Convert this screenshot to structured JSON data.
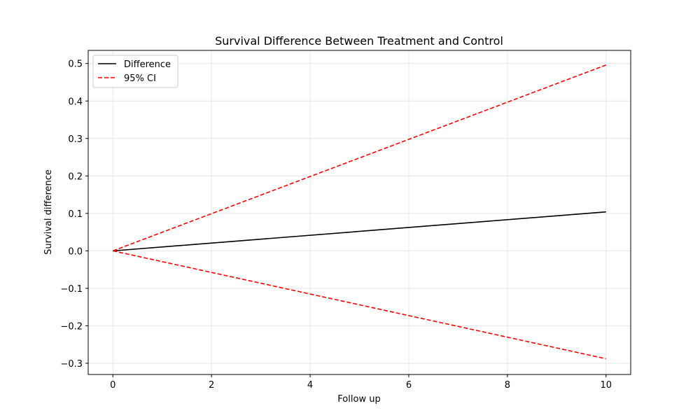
{
  "chart_data": {
    "type": "line",
    "title": "Survival Difference Between Treatment and Control",
    "xlabel": "Follow up",
    "ylabel": "Survival difference",
    "xlim": [
      -0.5,
      10.5
    ],
    "ylim": [
      -0.33,
      0.535
    ],
    "x_ticks": [
      0,
      2,
      4,
      6,
      8,
      10
    ],
    "y_ticks": [
      -0.3,
      -0.2,
      -0.1,
      0.0,
      0.1,
      0.2,
      0.3,
      0.4,
      0.5
    ],
    "x_tick_labels": [
      "0",
      "2",
      "4",
      "6",
      "8",
      "10"
    ],
    "y_tick_labels": [
      "−0.3",
      "−0.2",
      "−0.1",
      "0.0",
      "0.1",
      "0.2",
      "0.3",
      "0.4",
      "0.5"
    ],
    "grid": true,
    "legend_position": "top-left",
    "series": [
      {
        "name": "Difference",
        "x": [
          0,
          10
        ],
        "y": [
          0.0,
          0.104
        ],
        "color": "#000000",
        "style": "solid"
      },
      {
        "name": "95% CI",
        "x": [
          0,
          10
        ],
        "y": [
          0.0,
          0.496
        ],
        "color": "#ff0000",
        "style": "dashed"
      },
      {
        "x": [
          0,
          10
        ],
        "y": [
          0.0,
          -0.288
        ],
        "color": "#ff0000",
        "style": "dashed"
      }
    ],
    "legend": [
      {
        "label": "Difference",
        "color": "#000000",
        "style": "solid"
      },
      {
        "label": "95% CI",
        "color": "#ff0000",
        "style": "dashed"
      }
    ]
  }
}
